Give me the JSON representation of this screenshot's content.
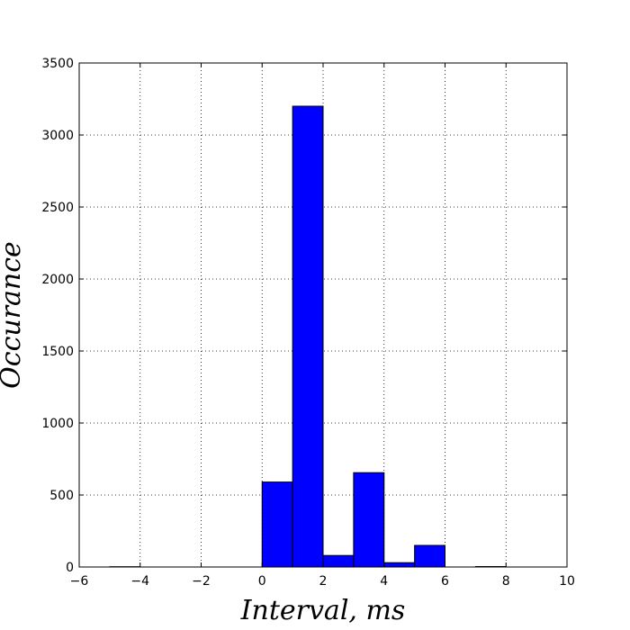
{
  "chart_data": {
    "type": "bar",
    "subtype": "histogram",
    "title": "",
    "xlabel": "Interval, ms",
    "ylabel": "Occurance",
    "xlim": [
      -6,
      10
    ],
    "ylim": [
      0,
      3500
    ],
    "xticks": [
      -6,
      -4,
      -2,
      0,
      2,
      4,
      6,
      8,
      10
    ],
    "yticks": [
      0,
      500,
      1000,
      1500,
      2000,
      2500,
      3000,
      3500
    ],
    "xtick_labels": [
      "−6",
      "−4",
      "−2",
      "0",
      "2",
      "4",
      "6",
      "8",
      "10"
    ],
    "ytick_labels": [
      "0",
      "500",
      "1000",
      "1500",
      "2000",
      "2500",
      "3000",
      "3500"
    ],
    "grid": true,
    "legend": "none",
    "bar_color": "#0000ff",
    "edge_color": "#000000",
    "bins": [
      {
        "x0": -5,
        "x1": -4,
        "value": 2
      },
      {
        "x0": -4,
        "x1": -3,
        "value": 0
      },
      {
        "x0": -3,
        "x1": -2,
        "value": 0
      },
      {
        "x0": -2,
        "x1": -1,
        "value": 0
      },
      {
        "x0": -1,
        "x1": 0,
        "value": 0
      },
      {
        "x0": 0,
        "x1": 1,
        "value": 590
      },
      {
        "x0": 1,
        "x1": 2,
        "value": 3200
      },
      {
        "x0": 2,
        "x1": 3,
        "value": 80
      },
      {
        "x0": 3,
        "x1": 4,
        "value": 655
      },
      {
        "x0": 4,
        "x1": 5,
        "value": 30
      },
      {
        "x0": 5,
        "x1": 6,
        "value": 150
      },
      {
        "x0": 6,
        "x1": 7,
        "value": 0
      },
      {
        "x0": 7,
        "x1": 8,
        "value": 3
      }
    ]
  }
}
